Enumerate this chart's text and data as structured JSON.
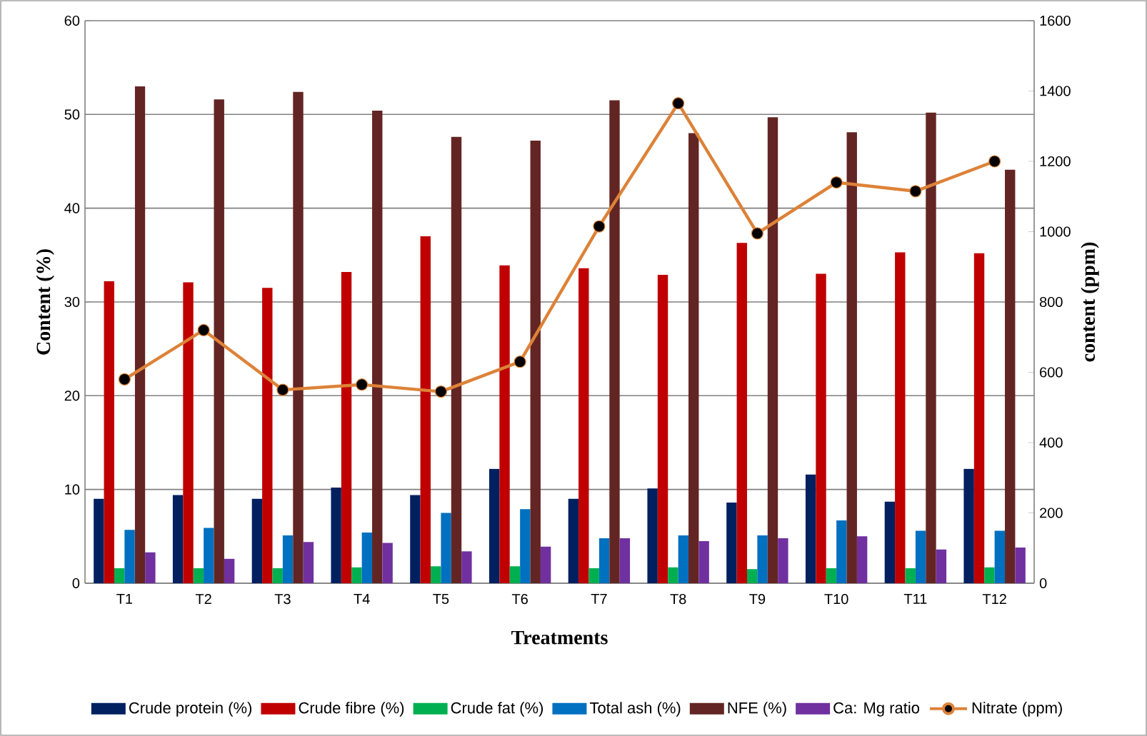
{
  "chart_data": {
    "type": "bar",
    "xlabel": "Treatments",
    "ylabel": "Content (%)",
    "y2label": "content (ppm)",
    "categories": [
      "T1",
      "T2",
      "T3",
      "T4",
      "T5",
      "T6",
      "T7",
      "T8",
      "T9",
      "T10",
      "T11",
      "T12"
    ],
    "series": [
      {
        "name": "Crude protein (%)",
        "color": "#002060",
        "values": [
          9.0,
          9.4,
          9.0,
          10.2,
          9.4,
          12.2,
          9.0,
          10.1,
          8.6,
          11.6,
          8.7,
          12.2
        ]
      },
      {
        "name": "Crude fibre (%)",
        "color": "#c00000",
        "values": [
          32.2,
          32.1,
          31.5,
          33.2,
          37.0,
          33.9,
          33.6,
          32.9,
          36.3,
          33.0,
          35.3,
          35.2
        ]
      },
      {
        "name": "Crude fat (%)",
        "color": "#00b050",
        "values": [
          1.6,
          1.6,
          1.6,
          1.7,
          1.8,
          1.8,
          1.6,
          1.7,
          1.5,
          1.6,
          1.6,
          1.7
        ]
      },
      {
        "name": "Total ash (%)",
        "color": "#0070c0",
        "values": [
          5.7,
          5.9,
          5.1,
          5.4,
          7.5,
          7.9,
          4.8,
          5.1,
          5.1,
          6.7,
          5.6,
          5.6
        ]
      },
      {
        "name": "NFE (%)",
        "color": "#632523",
        "values": [
          53.0,
          51.6,
          52.4,
          50.4,
          47.6,
          47.2,
          51.5,
          48.0,
          49.7,
          48.1,
          50.2,
          44.1
        ]
      },
      {
        "name": "Ca: Mg ratio",
        "color": "#7030a0",
        "values": [
          3.3,
          2.6,
          4.4,
          4.3,
          3.4,
          3.9,
          4.8,
          4.5,
          4.8,
          5.0,
          3.6,
          3.8
        ]
      },
      {
        "name": "Nitrate (ppm)",
        "type": "line",
        "axis": "y2",
        "color": "#dd8238",
        "values": [
          580,
          720,
          550,
          565,
          545,
          630,
          1015,
          1365,
          995,
          1140,
          1115,
          1200
        ]
      }
    ],
    "ylim": [
      0,
      60
    ],
    "yticks": [
      0,
      10,
      20,
      30,
      40,
      50,
      60
    ],
    "y2lim": [
      0,
      1600
    ],
    "y2ticks": [
      0,
      200,
      400,
      600,
      800,
      1000,
      1200,
      1400,
      1600
    ],
    "grid": "y",
    "legend": "bottom",
    "marker": "circle"
  }
}
